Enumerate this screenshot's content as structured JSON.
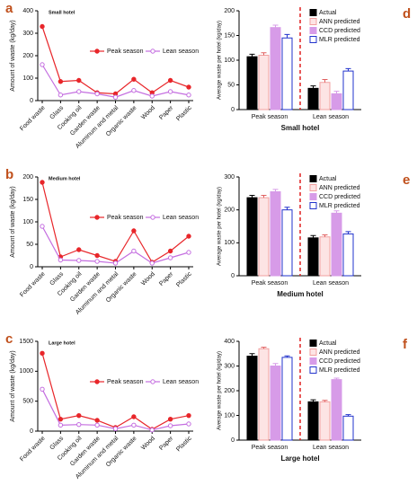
{
  "chart_data": [
    {
      "type": "line",
      "panel": "a",
      "title": "Small hotel",
      "ylabel": "Amount of waste (kg/day)",
      "categories": [
        "Food waste",
        "Glass",
        "Cooking oil",
        "Garden waste",
        "Aluminum and metal",
        "Organic waste",
        "Wood",
        "Paper",
        "Plastic"
      ],
      "series": [
        {
          "name": "Peak season",
          "color": "#e8262a",
          "hollow": false,
          "values": [
            330,
            85,
            90,
            35,
            30,
            95,
            35,
            90,
            60
          ]
        },
        {
          "name": "Lean season",
          "color": "#c46ee0",
          "hollow": true,
          "values": [
            160,
            25,
            40,
            30,
            15,
            45,
            20,
            40,
            25
          ]
        }
      ],
      "ylim": [
        0,
        400
      ],
      "yticks": [
        0,
        100,
        200,
        300,
        400
      ]
    },
    {
      "type": "line",
      "panel": "b",
      "title": "Medium hotel",
      "ylabel": "Amount of waste (kg/day)",
      "categories": [
        "Food waste",
        "Glass",
        "Cooking oil",
        "Garden waste",
        "Aluminum and metal",
        "Organic waste",
        "Wood",
        "Paper",
        "Plastic"
      ],
      "series": [
        {
          "name": "Peak season",
          "color": "#e8262a",
          "hollow": false,
          "values": [
            188,
            22,
            38,
            25,
            12,
            80,
            10,
            35,
            68
          ]
        },
        {
          "name": "Lean season",
          "color": "#c46ee0",
          "hollow": true,
          "values": [
            90,
            15,
            14,
            12,
            8,
            35,
            8,
            20,
            32
          ]
        }
      ],
      "ylim": [
        0,
        200
      ],
      "yticks": [
        0,
        50,
        100,
        150,
        200
      ]
    },
    {
      "type": "line",
      "panel": "c",
      "title": "Large hotel",
      "ylabel": "Amount of waste (kg/day)",
      "categories": [
        "Food waste",
        "Glass",
        "Cooking oil",
        "Garden waste",
        "Aluminum and metal",
        "Organic waste",
        "Wood",
        "Paper",
        "Plastic"
      ],
      "series": [
        {
          "name": "Peak season",
          "color": "#e8262a",
          "hollow": false,
          "values": [
            1300,
            200,
            260,
            180,
            60,
            240,
            30,
            200,
            260
          ]
        },
        {
          "name": "Lean season",
          "color": "#c46ee0",
          "hollow": true,
          "values": [
            700,
            100,
            110,
            100,
            40,
            100,
            20,
            90,
            120
          ]
        }
      ],
      "ylim": [
        0,
        1500
      ],
      "yticks": [
        0,
        500,
        1000,
        1500
      ]
    },
    {
      "type": "bar",
      "panel": "d",
      "xlabel": "Small hotel",
      "ylabel": "Average waste per hotel (kg/day)",
      "categories": [
        "Peak season",
        "Lean season"
      ],
      "series": [
        {
          "name": "Actual",
          "color": "#000000",
          "fill": "#000000",
          "values": [
            107,
            43
          ],
          "errors": [
            5,
            5
          ]
        },
        {
          "name": "ANN predicted",
          "color": "#f2a0a0",
          "fill": "#fde4e4",
          "values": [
            110,
            55
          ],
          "errors": [
            5,
            6
          ]
        },
        {
          "name": "CCD predicted",
          "color": "#d79be8",
          "fill": "#d79be8",
          "values": [
            166,
            32
          ],
          "errors": [
            5,
            5
          ]
        },
        {
          "name": "MLR predicted",
          "color": "#2233cc",
          "fill": "#ffffff",
          "values": [
            145,
            78
          ],
          "errors": [
            7,
            5
          ]
        }
      ],
      "ylim": [
        0,
        200
      ],
      "yticks": [
        0,
        50,
        100,
        150,
        200
      ]
    },
    {
      "type": "bar",
      "panel": "e",
      "xlabel": "Medium hotel",
      "ylabel": "Average waste per hotel (kg/day)",
      "categories": [
        "Peak season",
        "Lean season"
      ],
      "series": [
        {
          "name": "Actual",
          "color": "#000000",
          "fill": "#000000",
          "values": [
            237,
            115
          ],
          "errors": [
            7,
            7
          ]
        },
        {
          "name": "ANN predicted",
          "color": "#f2a0a0",
          "fill": "#fde4e4",
          "values": [
            237,
            118
          ],
          "errors": [
            7,
            6
          ]
        },
        {
          "name": "CCD predicted",
          "color": "#d79be8",
          "fill": "#d79be8",
          "values": [
            255,
            190
          ],
          "errors": [
            7,
            7
          ]
        },
        {
          "name": "MLR predicted",
          "color": "#2233cc",
          "fill": "#ffffff",
          "values": [
            200,
            127
          ],
          "errors": [
            8,
            7
          ]
        }
      ],
      "ylim": [
        0,
        300
      ],
      "yticks": [
        0,
        100,
        200,
        300
      ]
    },
    {
      "type": "bar",
      "panel": "f",
      "xlabel": "Large hotel",
      "ylabel": "Average waste per hotel (kg/day)",
      "categories": [
        "Peak season",
        "Lean season"
      ],
      "series": [
        {
          "name": "Actual",
          "color": "#000000",
          "fill": "#000000",
          "values": [
            340,
            155
          ],
          "errors": [
            10,
            8
          ]
        },
        {
          "name": "ANN predicted",
          "color": "#f2a0a0",
          "fill": "#fde4e4",
          "values": [
            370,
            155
          ],
          "errors": [
            6,
            6
          ]
        },
        {
          "name": "CCD predicted",
          "color": "#d79be8",
          "fill": "#d79be8",
          "values": [
            300,
            245
          ],
          "errors": [
            10,
            6
          ]
        },
        {
          "name": "MLR predicted",
          "color": "#2233cc",
          "fill": "#ffffff",
          "values": [
            335,
            97
          ],
          "errors": [
            6,
            6
          ]
        }
      ],
      "ylim": [
        0,
        400
      ],
      "yticks": [
        0,
        100,
        200,
        300,
        400
      ]
    }
  ]
}
